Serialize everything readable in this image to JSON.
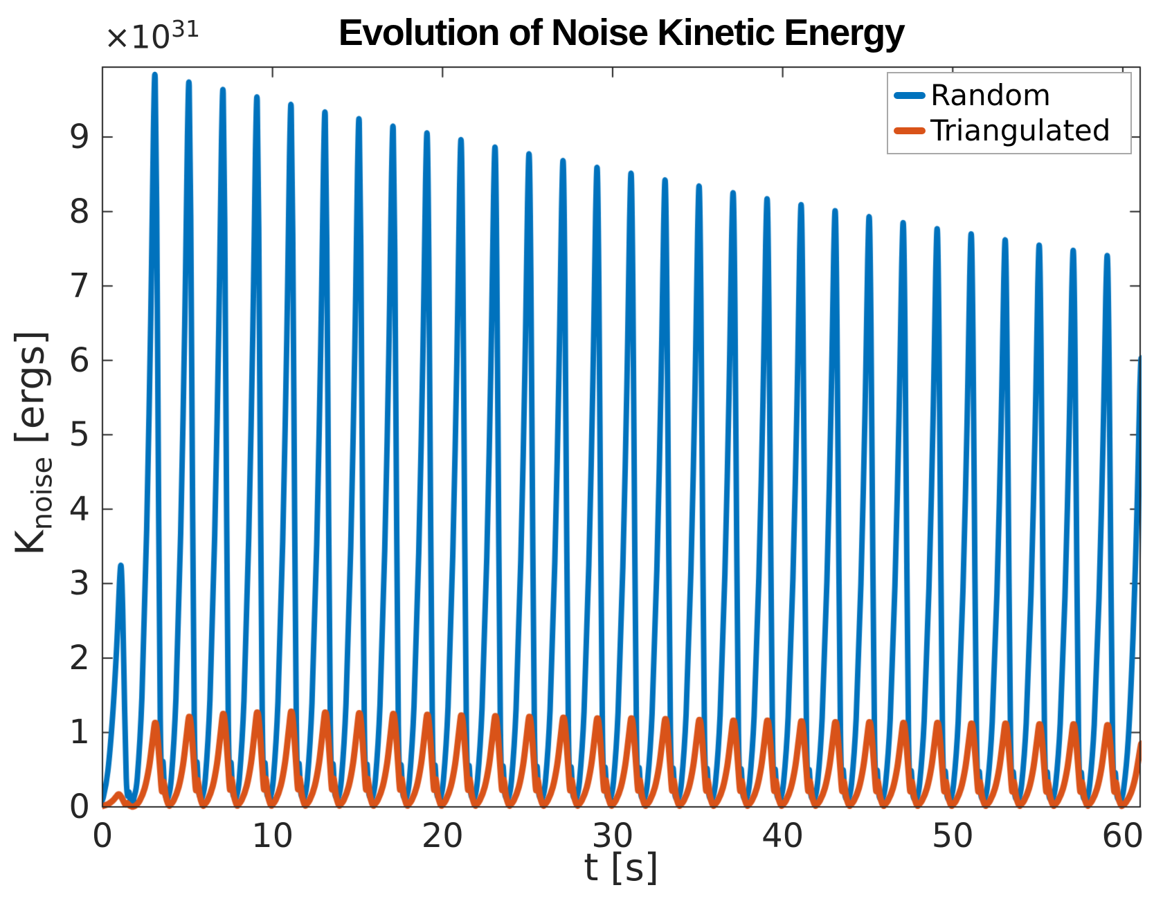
{
  "chart_data": {
    "type": "line",
    "title": "Evolution of Noise Kinetic Energy",
    "xlabel": "t [s]",
    "ylabel": {
      "main": "K",
      "sub": "noise",
      "units": " [ergs]"
    },
    "y_offset": {
      "base": "×10",
      "exp": "31"
    },
    "y_unit_multiplier": "1e31",
    "xlim": [
      0,
      61.02
    ],
    "ylim": [
      0,
      9.94
    ],
    "x_ticks": [
      0,
      10,
      20,
      30,
      40,
      50,
      60
    ],
    "y_ticks": [
      0,
      1,
      2,
      3,
      4,
      5,
      6,
      7,
      8,
      9
    ],
    "grid": false,
    "legend_position": "top-right",
    "notes": "Two periodic spiky series, period 2 s; peaks listed as [t, K/1e31]. Last peak of each series is partial (clipped at right axis edge).",
    "series": [
      {
        "name": "Random",
        "color": "#0072BD",
        "line_width": 8,
        "period_s": 2.0,
        "peaks_t_v": [
          [
            1.1,
            3.23
          ],
          [
            3.1,
            9.79
          ],
          [
            5.1,
            9.69
          ],
          [
            7.1,
            9.59
          ],
          [
            9.1,
            9.49
          ],
          [
            11.1,
            9.39
          ],
          [
            13.1,
            9.29
          ],
          [
            15.1,
            9.2
          ],
          [
            17.1,
            9.1
          ],
          [
            19.1,
            9.01
          ],
          [
            21.1,
            8.92
          ],
          [
            23.1,
            8.82
          ],
          [
            25.1,
            8.73
          ],
          [
            27.1,
            8.64
          ],
          [
            29.1,
            8.55
          ],
          [
            31.1,
            8.47
          ],
          [
            33.1,
            8.38
          ],
          [
            35.1,
            8.3
          ],
          [
            37.1,
            8.21
          ],
          [
            39.1,
            8.13
          ],
          [
            41.1,
            8.05
          ],
          [
            43.1,
            7.97
          ],
          [
            45.1,
            7.89
          ],
          [
            47.1,
            7.81
          ],
          [
            49.1,
            7.73
          ],
          [
            51.1,
            7.66
          ],
          [
            53.1,
            7.58
          ],
          [
            55.1,
            7.51
          ],
          [
            57.1,
            7.44
          ],
          [
            59.1,
            7.37
          ],
          [
            61.1,
            6.0
          ]
        ],
        "cycle_template": [
          [
            -1.25,
            0.012
          ],
          [
            -1.05,
            0.04
          ],
          [
            -0.78,
            0.15
          ],
          [
            -0.5,
            0.38
          ],
          [
            -0.26,
            0.67
          ],
          [
            -0.1,
            0.93
          ],
          [
            0,
            1.0
          ],
          [
            0.09,
            0.82
          ],
          [
            0.2,
            0.42
          ],
          [
            0.3,
            0.12
          ],
          [
            0.38,
            0.046
          ],
          [
            0.46,
            0.062
          ],
          [
            0.56,
            0.02
          ],
          [
            0.7,
            0.012
          ]
        ]
      },
      {
        "name": "Triangulated",
        "color": "#D95319",
        "line_width": 9,
        "period_s": 2.0,
        "peaks_t_v": [
          [
            0.95,
            0.17
          ],
          [
            3.1,
            1.13
          ],
          [
            5.1,
            1.21
          ],
          [
            7.1,
            1.25
          ],
          [
            9.1,
            1.27
          ],
          [
            11.1,
            1.28
          ],
          [
            13.1,
            1.27
          ],
          [
            15.1,
            1.26
          ],
          [
            17.1,
            1.25
          ],
          [
            19.1,
            1.24
          ],
          [
            21.1,
            1.23
          ],
          [
            23.1,
            1.22
          ],
          [
            25.1,
            1.21
          ],
          [
            27.1,
            1.2
          ],
          [
            29.1,
            1.19
          ],
          [
            31.1,
            1.19
          ],
          [
            33.1,
            1.18
          ],
          [
            35.1,
            1.17
          ],
          [
            37.1,
            1.16
          ],
          [
            39.1,
            1.16
          ],
          [
            41.1,
            1.15
          ],
          [
            43.1,
            1.14
          ],
          [
            45.1,
            1.14
          ],
          [
            47.1,
            1.13
          ],
          [
            49.1,
            1.13
          ],
          [
            51.1,
            1.12
          ],
          [
            53.1,
            1.12
          ],
          [
            55.1,
            1.11
          ],
          [
            57.1,
            1.11
          ],
          [
            59.1,
            1.1
          ],
          [
            61.1,
            0.85
          ]
        ],
        "cycle_template": [
          [
            -1.15,
            0.017
          ],
          [
            -0.92,
            0.07
          ],
          [
            -0.62,
            0.22
          ],
          [
            -0.36,
            0.47
          ],
          [
            -0.16,
            0.78
          ],
          [
            -0.05,
            0.96
          ],
          [
            0,
            1.0
          ],
          [
            0.07,
            0.96
          ],
          [
            0.18,
            0.74
          ],
          [
            0.3,
            0.42
          ],
          [
            0.4,
            0.185
          ],
          [
            0.5,
            0.3
          ],
          [
            0.62,
            0.13
          ],
          [
            0.76,
            0.035
          ],
          [
            0.85,
            0.017
          ]
        ]
      }
    ],
    "axis_color": "#262626"
  }
}
